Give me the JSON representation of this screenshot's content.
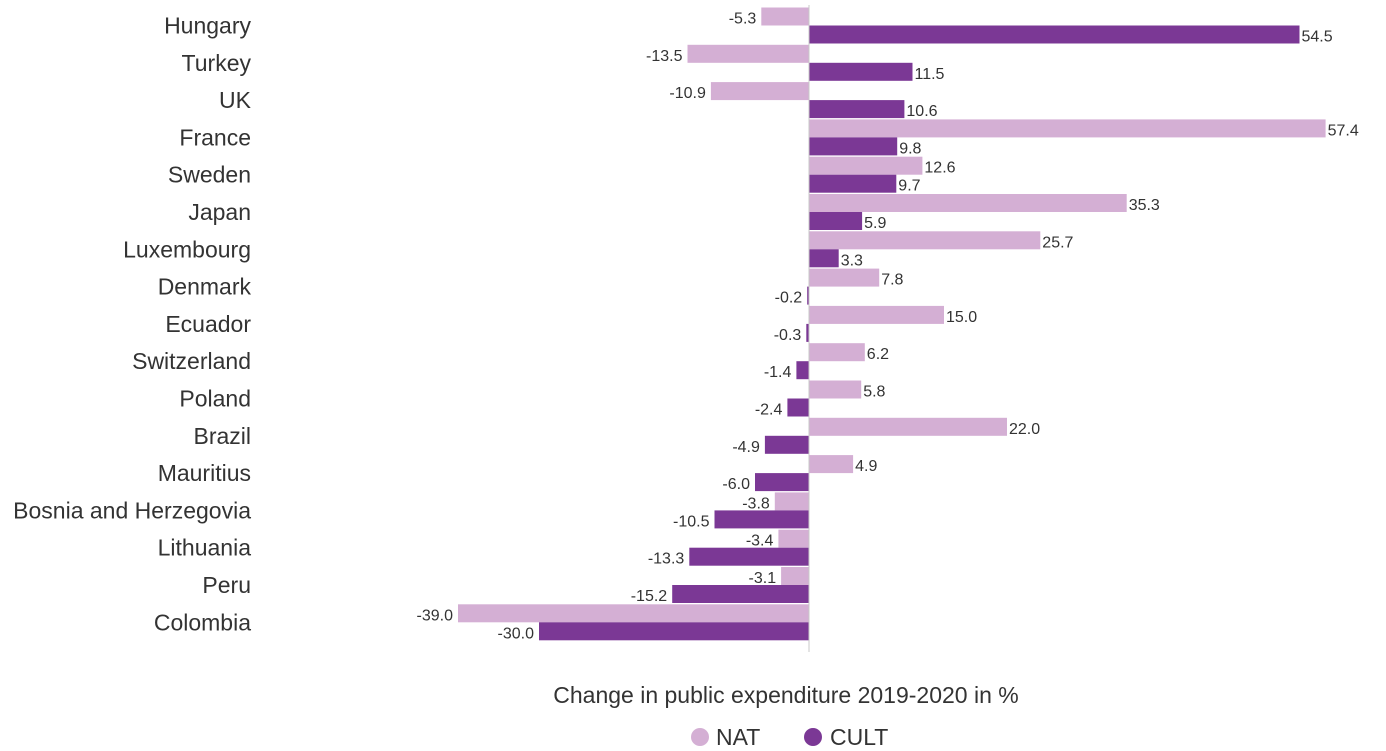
{
  "chart_data": {
    "type": "bar",
    "orientation": "horizontal",
    "categories": [
      "Hungary",
      "Turkey",
      "UK",
      "France",
      "Sweden",
      "Japan",
      "Luxembourg",
      "Denmark",
      "Ecuador",
      "Switzerland",
      "Poland",
      "Brazil",
      "Mauritius",
      "Bosnia and Herzegovia",
      "Lithuania",
      "Peru",
      "Colombia"
    ],
    "series": [
      {
        "name": "NAT",
        "color": "#d4afd4",
        "values": [
          -5.3,
          -13.5,
          -10.9,
          57.4,
          12.6,
          35.3,
          25.7,
          7.8,
          15.0,
          6.2,
          5.8,
          22.0,
          4.9,
          -3.8,
          -3.4,
          -3.1,
          -39.0
        ]
      },
      {
        "name": "CULT",
        "color": "#7b3895",
        "values": [
          54.5,
          11.5,
          10.6,
          9.8,
          9.7,
          5.9,
          3.3,
          -0.2,
          -0.3,
          -1.4,
          -2.4,
          -4.9,
          -6.0,
          -10.5,
          -13.3,
          -15.2,
          -30.0
        ]
      }
    ],
    "xlabel": "Change in public expenditure 2019-2020 in %",
    "xlim": [
      -39.0,
      57.4
    ],
    "grid": false,
    "legend_position": "bottom",
    "value_labels": true,
    "value_format": "one decimal"
  }
}
